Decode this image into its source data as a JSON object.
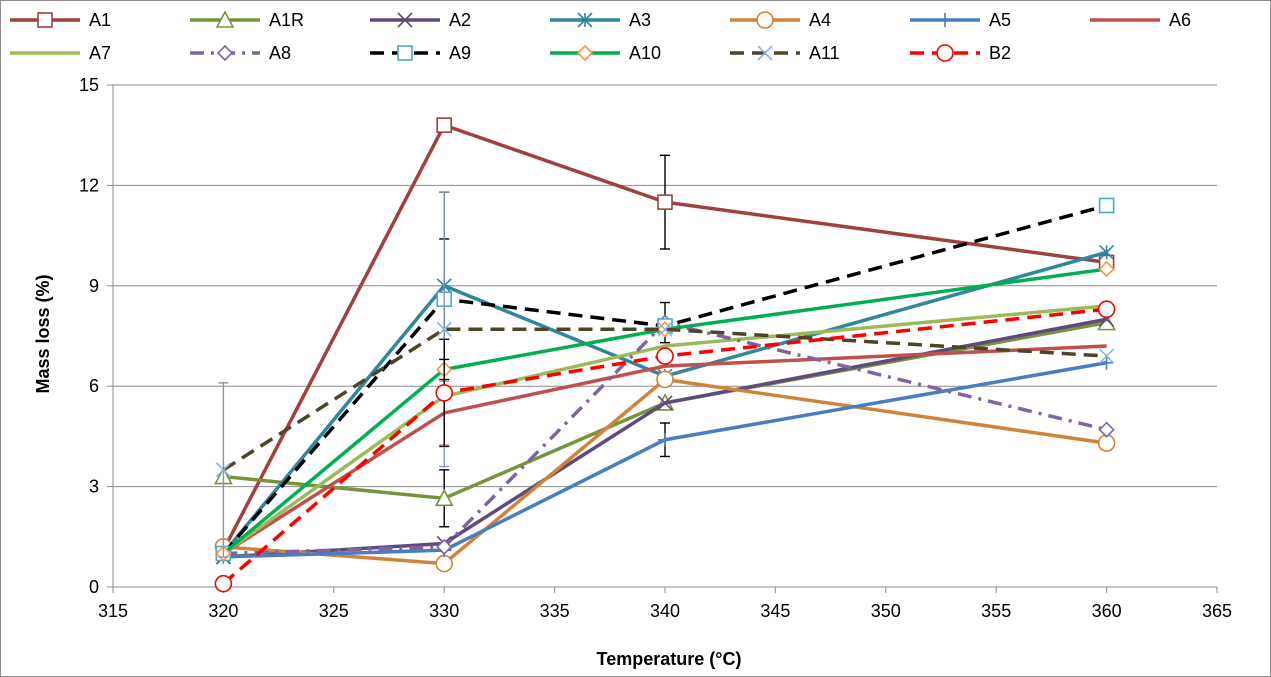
{
  "chart_data": {
    "type": "line",
    "xlabel": "Temperature (°C)",
    "ylabel": "Mass loss (%)",
    "xlim": [
      315,
      365
    ],
    "ylim": [
      0,
      15
    ],
    "xticks": [
      315,
      320,
      325,
      330,
      335,
      340,
      345,
      350,
      355,
      360,
      365
    ],
    "yticks": [
      0,
      3,
      6,
      9,
      12,
      15
    ],
    "grid": "horizontal",
    "legend_position": "top",
    "series": [
      {
        "name": "A1",
        "color": "#a0413e",
        "dash": "solid",
        "marker": "square",
        "x": [
          320,
          330,
          340,
          360
        ],
        "y": [
          1.1,
          13.8,
          11.5,
          9.7
        ],
        "error": [
          0,
          0,
          1.4,
          0
        ]
      },
      {
        "name": "A1R",
        "color": "#77933c",
        "dash": "solid",
        "marker": "triangle",
        "x": [
          320,
          330,
          340,
          360
        ],
        "y": [
          3.3,
          2.65,
          5.5,
          7.9
        ],
        "error": [
          0,
          0.85,
          0,
          0
        ]
      },
      {
        "name": "A2",
        "color": "#604a7b",
        "dash": "solid",
        "marker": "x",
        "x": [
          320,
          330,
          340,
          360
        ],
        "y": [
          0.9,
          1.3,
          5.5,
          8.0
        ]
      },
      {
        "name": "A3",
        "color": "#31859c",
        "dash": "solid",
        "marker": "asterisk",
        "x": [
          320,
          330,
          340,
          360
        ],
        "y": [
          1.0,
          9.0,
          6.3,
          10.0
        ],
        "error": [
          0,
          2.8,
          0,
          0
        ]
      },
      {
        "name": "A4",
        "color": "#d0833a",
        "dash": "solid",
        "marker": "circle",
        "x": [
          320,
          330,
          340,
          360
        ],
        "y": [
          1.2,
          0.7,
          6.2,
          4.3
        ]
      },
      {
        "name": "A5",
        "color": "#4a7dbd",
        "dash": "solid",
        "marker": "plus",
        "x": [
          320,
          330,
          340,
          360
        ],
        "y": [
          0.9,
          1.1,
          4.4,
          6.7
        ],
        "error": [
          0,
          0,
          0.5,
          0
        ]
      },
      {
        "name": "A6",
        "color": "#c0504d",
        "dash": "solid",
        "marker": "none",
        "x": [
          320,
          330,
          340,
          360
        ],
        "y": [
          1.0,
          5.2,
          6.6,
          7.2
        ],
        "error": [
          0,
          0.95,
          0,
          0
        ]
      },
      {
        "name": "A7",
        "color": "#9bbb59",
        "dash": "solid",
        "marker": "none",
        "x": [
          320,
          330,
          340,
          360
        ],
        "y": [
          1.0,
          5.7,
          7.2,
          8.4
        ]
      },
      {
        "name": "A8",
        "color": "#8064a2",
        "dash": "dashdot",
        "marker": "diamond",
        "x": [
          320,
          330,
          340,
          360
        ],
        "y": [
          1.0,
          1.2,
          7.9,
          4.7
        ],
        "error": [
          0,
          0,
          0.6,
          0
        ]
      },
      {
        "name": "A9",
        "color": "#000000",
        "dash": "dash",
        "marker": "square",
        "marker_color": "#4bacc6",
        "x": [
          320,
          330,
          340,
          360
        ],
        "y": [
          1.0,
          8.6,
          7.8,
          11.4
        ],
        "error": [
          0,
          1.8,
          0,
          0
        ]
      },
      {
        "name": "A10",
        "color": "#00b050",
        "dash": "solid",
        "marker": "diamond",
        "marker_color": "#f79646",
        "x": [
          320,
          330,
          340,
          360
        ],
        "y": [
          1.0,
          6.5,
          7.7,
          9.5
        ]
      },
      {
        "name": "A11",
        "color": "#4f4328",
        "dash": "dash",
        "marker": "x",
        "marker_color": "#8db3e2",
        "x": [
          320,
          330,
          340,
          360
        ],
        "y": [
          3.5,
          7.7,
          7.7,
          6.9
        ],
        "error": [
          2.6,
          4.1,
          0,
          0
        ]
      },
      {
        "name": "B2",
        "color": "#ff0000",
        "dash": "dash",
        "marker": "circle",
        "x": [
          320,
          330,
          340,
          360
        ],
        "y": [
          0.1,
          5.8,
          6.9,
          8.3
        ],
        "error": [
          0,
          1.6,
          0,
          0
        ]
      }
    ]
  }
}
